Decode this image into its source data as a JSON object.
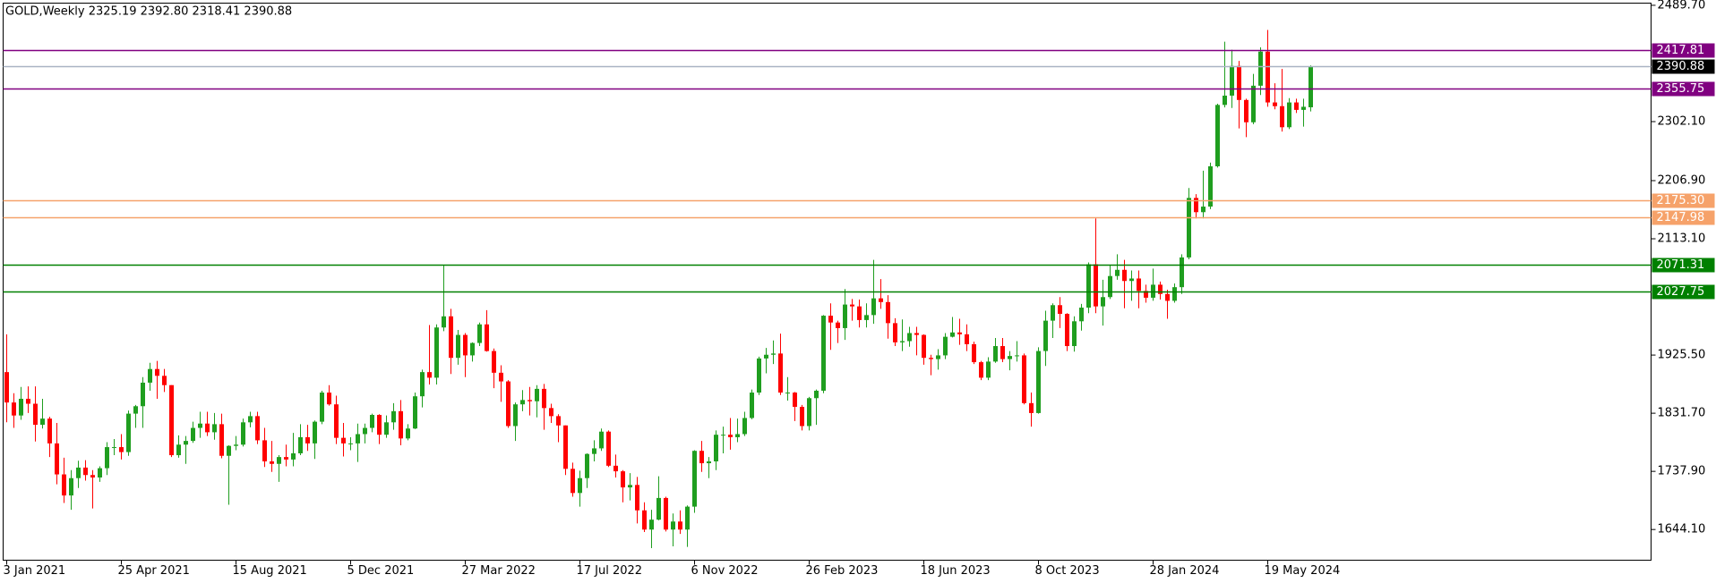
{
  "chart_data": {
    "type": "candlestick",
    "title": "GOLD,Weekly  2325.19 2392.80 2318.41 2390.88",
    "categories": [
      "3 Jan 2021",
      null,
      null,
      null,
      null,
      null,
      null,
      null,
      null,
      null,
      null,
      null,
      null,
      null,
      null,
      null,
      "25 Apr 2021",
      null,
      null,
      null,
      null,
      null,
      null,
      null,
      null,
      null,
      null,
      null,
      null,
      null,
      null,
      null,
      "15 Aug 2021",
      null,
      null,
      null,
      null,
      null,
      null,
      null,
      null,
      null,
      null,
      null,
      null,
      null,
      null,
      null,
      "5 Dec 2021",
      null,
      null,
      null,
      null,
      null,
      null,
      null,
      null,
      null,
      null,
      null,
      null,
      null,
      null,
      null,
      "27 Mar 2022",
      null,
      null,
      null,
      null,
      null,
      null,
      null,
      null,
      null,
      null,
      null,
      null,
      null,
      null,
      null,
      "17 Jul 2022",
      null,
      null,
      null,
      null,
      null,
      null,
      null,
      null,
      null,
      null,
      null,
      null,
      null,
      null,
      null,
      "6 Nov 2022",
      null,
      null,
      null,
      null,
      null,
      null,
      null,
      null,
      null,
      null,
      null,
      null,
      null,
      null,
      null,
      "26 Feb 2023",
      null,
      null,
      null,
      null,
      null,
      null,
      null,
      null,
      null,
      null,
      null,
      null,
      null,
      null,
      null,
      "18 Jun 2023",
      null,
      null,
      null,
      null,
      null,
      null,
      null,
      null,
      null,
      null,
      null,
      null,
      null,
      null,
      null,
      "8 Oct 2023",
      null,
      null,
      null,
      null,
      null,
      null,
      null,
      null,
      null,
      null,
      null,
      null,
      null,
      null,
      null,
      "28 Jan 2024",
      null,
      null,
      null,
      null,
      null,
      null,
      null,
      null,
      null,
      null,
      null,
      null,
      null,
      null,
      null,
      "19 May 2024",
      null,
      null,
      null,
      null,
      null,
      null
    ],
    "open": [
      1898,
      1849,
      1828,
      1855,
      1847,
      1813,
      1823,
      1783,
      1733,
      1699,
      1727,
      1744,
      1732,
      1728,
      1743,
      1777,
      1777,
      1769,
      1831,
      1843,
      1881,
      1903,
      1892,
      1877,
      1764,
      1781,
      1787,
      1808,
      1815,
      1801,
      1814,
      1763,
      1779,
      1781,
      1817,
      1827,
      1788,
      1754,
      1750,
      1761,
      1757,
      1767,
      1793,
      1783,
      1818,
      1865,
      1846,
      1792,
      1783,
      1783,
      1798,
      1808,
      1829,
      1797,
      1817,
      1835,
      1791,
      1807,
      1859,
      1898,
      1889,
      1970,
      1988,
      1921,
      1958,
      1925,
      1945,
      1975,
      1932,
      1897,
      1883,
      1811,
      1846,
      1853,
      1851,
      1871,
      1840,
      1827,
      1812,
      1742,
      1703,
      1727,
      1766,
      1775,
      1802,
      1747,
      1738,
      1712,
      1716,
      1675,
      1644,
      1660,
      1695,
      1644,
      1657,
      1644,
      1681,
      1771,
      1751,
      1754,
      1797,
      1797,
      1793,
      1798,
      1824,
      1865,
      1920,
      1926,
      1928,
      1865,
      1865,
      1842,
      1811,
      1856,
      1868,
      1989,
      1978,
      1969,
      2007,
      2004,
      1982,
      1990,
      2017,
      2011,
      1977,
      1946,
      1948,
      1961,
      1958,
      1921,
      1919,
      1925,
      1955,
      1962,
      1959,
      1943,
      1914,
      1889,
      1915,
      1940,
      1919,
      1924,
      1925,
      1848,
      1832,
      1932,
      1981,
      2006,
      1992,
      1940,
      1980,
      2002,
      2072,
      2004,
      2019,
      2053,
      2063,
      2045,
      2049,
      2029,
      2018,
      2039,
      2024,
      2013,
      2035,
      2083,
      2179,
      2156,
      2165,
      2230,
      2329,
      2344,
      2392,
      2337,
      2301,
      2360,
      2415,
      2333,
      2327,
      2293,
      2333,
      2321,
      2325.19
    ],
    "high": [
      1959,
      1864,
      1874,
      1875,
      1875,
      1855,
      1826,
      1816,
      1760,
      1740,
      1755,
      1756,
      1740,
      1746,
      1785,
      1790,
      1798,
      1836,
      1845,
      1890,
      1913,
      1916,
      1903,
      1877,
      1796,
      1795,
      1818,
      1834,
      1834,
      1832,
      1831,
      1780,
      1795,
      1823,
      1834,
      1834,
      1808,
      1787,
      1764,
      1781,
      1800,
      1814,
      1813,
      1820,
      1868,
      1877,
      1860,
      1816,
      1793,
      1815,
      1815,
      1831,
      1830,
      1828,
      1848,
      1853,
      1814,
      1865,
      1902,
      1974,
      1975,
      2070,
      2000,
      1966,
      1961,
      1946,
      1978,
      1998,
      1936,
      1909,
      1885,
      1849,
      1869,
      1874,
      1877,
      1879,
      1847,
      1830,
      1812,
      1752,
      1739,
      1767,
      1788,
      1807,
      1804,
      1765,
      1740,
      1735,
      1729,
      1688,
      1676,
      1730,
      1697,
      1670,
      1675,
      1683,
      1772,
      1787,
      1761,
      1804,
      1810,
      1824,
      1823,
      1834,
      1870,
      1923,
      1937,
      1949,
      1960,
      1890,
      1866,
      1845,
      1858,
      1870,
      1990,
      2009,
      1981,
      2032,
      2016,
      2015,
      2009,
      2079,
      2048,
      2022,
      1985,
      1983,
      1971,
      1971,
      1959,
      1926,
      1935,
      1961,
      1987,
      1984,
      1975,
      1947,
      1916,
      1922,
      1953,
      1953,
      1932,
      1948,
      1928,
      1865,
      1938,
      1997,
      2009,
      2019,
      1993,
      1988,
      2008,
      2075,
      2146,
      2047,
      2070,
      2088,
      2079,
      2062,
      2062,
      2039,
      2065,
      2044,
      2031,
      2041,
      2088,
      2195,
      2185,
      2223,
      2236,
      2331,
      2431,
      2418,
      2400,
      2339,
      2379,
      2422,
      2450,
      2364,
      2387,
      2340,
      2339,
      2339,
      2392.8
    ],
    "low": [
      1817,
      1808,
      1821,
      1832,
      1786,
      1807,
      1761,
      1717,
      1687,
      1676,
      1711,
      1723,
      1678,
      1721,
      1732,
      1764,
      1757,
      1763,
      1808,
      1808,
      1868,
      1855,
      1866,
      1761,
      1760,
      1750,
      1784,
      1792,
      1795,
      1789,
      1759,
      1684,
      1772,
      1778,
      1809,
      1782,
      1745,
      1737,
      1721,
      1746,
      1746,
      1764,
      1771,
      1758,
      1814,
      1844,
      1782,
      1762,
      1772,
      1753,
      1783,
      1801,
      1782,
      1792,
      1805,
      1780,
      1788,
      1806,
      1841,
      1878,
      1878,
      1964,
      1895,
      1910,
      1890,
      1915,
      1940,
      1931,
      1872,
      1850,
      1808,
      1787,
      1835,
      1828,
      1825,
      1805,
      1816,
      1785,
      1732,
      1697,
      1681,
      1711,
      1754,
      1771,
      1745,
      1728,
      1688,
      1691,
      1654,
      1640,
      1614,
      1659,
      1641,
      1617,
      1637,
      1616,
      1671,
      1737,
      1727,
      1740,
      1767,
      1773,
      1785,
      1795,
      1822,
      1861,
      1896,
      1911,
      1861,
      1852,
      1819,
      1804,
      1804,
      1813,
      1864,
      1934,
      1945,
      1950,
      1981,
      1970,
      1970,
      1976,
      2000,
      1952,
      1940,
      1932,
      1939,
      1925,
      1910,
      1893,
      1902,
      1919,
      1954,
      1942,
      1932,
      1911,
      1885,
      1885,
      1913,
      1914,
      1901,
      1915,
      1846,
      1810,
      1831,
      1908,
      1953,
      1969,
      1932,
      1931,
      1965,
      1993,
      1993,
      1973,
      2016,
      2047,
      2001,
      2013,
      2001,
      2010,
      2013,
      2015,
      1984,
      2010,
      2024,
      2080,
      2146,
      2146,
      2161,
      2228,
      2325,
      2324,
      2291,
      2277,
      2298,
      2345,
      2326,
      2322,
      2286,
      2290,
      2316,
      2294,
      2318.41
    ],
    "close": [
      1849,
      1828,
      1855,
      1847,
      1813,
      1823,
      1783,
      1733,
      1699,
      1727,
      1744,
      1732,
      1728,
      1743,
      1777,
      1777,
      1769,
      1831,
      1843,
      1881,
      1903,
      1892,
      1877,
      1764,
      1781,
      1787,
      1808,
      1815,
      1801,
      1814,
      1763,
      1779,
      1781,
      1817,
      1827,
      1788,
      1754,
      1750,
      1761,
      1757,
      1767,
      1793,
      1783,
      1818,
      1865,
      1846,
      1792,
      1783,
      1783,
      1798,
      1808,
      1829,
      1797,
      1817,
      1835,
      1791,
      1807,
      1859,
      1898,
      1889,
      1970,
      1988,
      1921,
      1958,
      1925,
      1945,
      1975,
      1932,
      1897,
      1883,
      1811,
      1846,
      1853,
      1851,
      1871,
      1840,
      1827,
      1812,
      1742,
      1703,
      1727,
      1766,
      1775,
      1802,
      1747,
      1738,
      1712,
      1716,
      1675,
      1644,
      1660,
      1695,
      1644,
      1657,
      1644,
      1681,
      1771,
      1751,
      1754,
      1797,
      1797,
      1793,
      1798,
      1824,
      1865,
      1920,
      1926,
      1928,
      1865,
      1865,
      1842,
      1811,
      1856,
      1868,
      1989,
      1978,
      1969,
      2007,
      2004,
      1982,
      1990,
      2017,
      2011,
      1977,
      1946,
      1948,
      1961,
      1958,
      1921,
      1919,
      1925,
      1955,
      1962,
      1959,
      1943,
      1914,
      1889,
      1915,
      1940,
      1919,
      1924,
      1925,
      1848,
      1832,
      1932,
      1981,
      2006,
      1992,
      1940,
      1980,
      2002,
      2072,
      2004,
      2019,
      2053,
      2063,
      2045,
      2049,
      2029,
      2018,
      2039,
      2024,
      2013,
      2035,
      2083,
      2179,
      2156,
      2165,
      2230,
      2329,
      2344,
      2392,
      2337,
      2301,
      2360,
      2415,
      2333,
      2327,
      2293,
      2333,
      2321,
      2326,
      2390.88
    ],
    "up_color": "#1f9e1f",
    "down_color": "#ff0000",
    "ylim": [
      1594.6,
      2493.2
    ],
    "yticks": [
      {
        "value": 2489.7,
        "label": "2489.70"
      },
      {
        "value": 2302.1,
        "label": "2302.10"
      },
      {
        "value": 2206.9,
        "label": "2206.90"
      },
      {
        "value": 2113.1,
        "label": "2113.10"
      },
      {
        "value": 1925.5,
        "label": "1925.50"
      },
      {
        "value": 1831.7,
        "label": "1831.70"
      },
      {
        "value": 1737.9,
        "label": "1737.90"
      },
      {
        "value": 1644.1,
        "label": "1644.10"
      }
    ],
    "levels": [
      {
        "value": 2417.81,
        "label": "2417.81",
        "color": "#800080",
        "label_color": "#800080"
      },
      {
        "value": 2390.88,
        "label": "2390.88",
        "color": "#a9b3c4",
        "label_color": "#000000"
      },
      {
        "value": 2355.75,
        "label": "2355.75",
        "color": "#800080",
        "label_color": "#800080"
      },
      {
        "value": 2175.3,
        "label": "2175.30",
        "color": "#f6a26a",
        "label_color": "#f6a26a"
      },
      {
        "value": 2147.98,
        "label": "2147.98",
        "color": "#f6a26a",
        "label_color": "#f6a26a"
      },
      {
        "value": 2071.31,
        "label": "2071.31",
        "color": "#008000",
        "label_color": "#008000"
      },
      {
        "value": 2027.75,
        "label": "2027.75",
        "color": "#008000",
        "label_color": "#008000"
      }
    ]
  }
}
